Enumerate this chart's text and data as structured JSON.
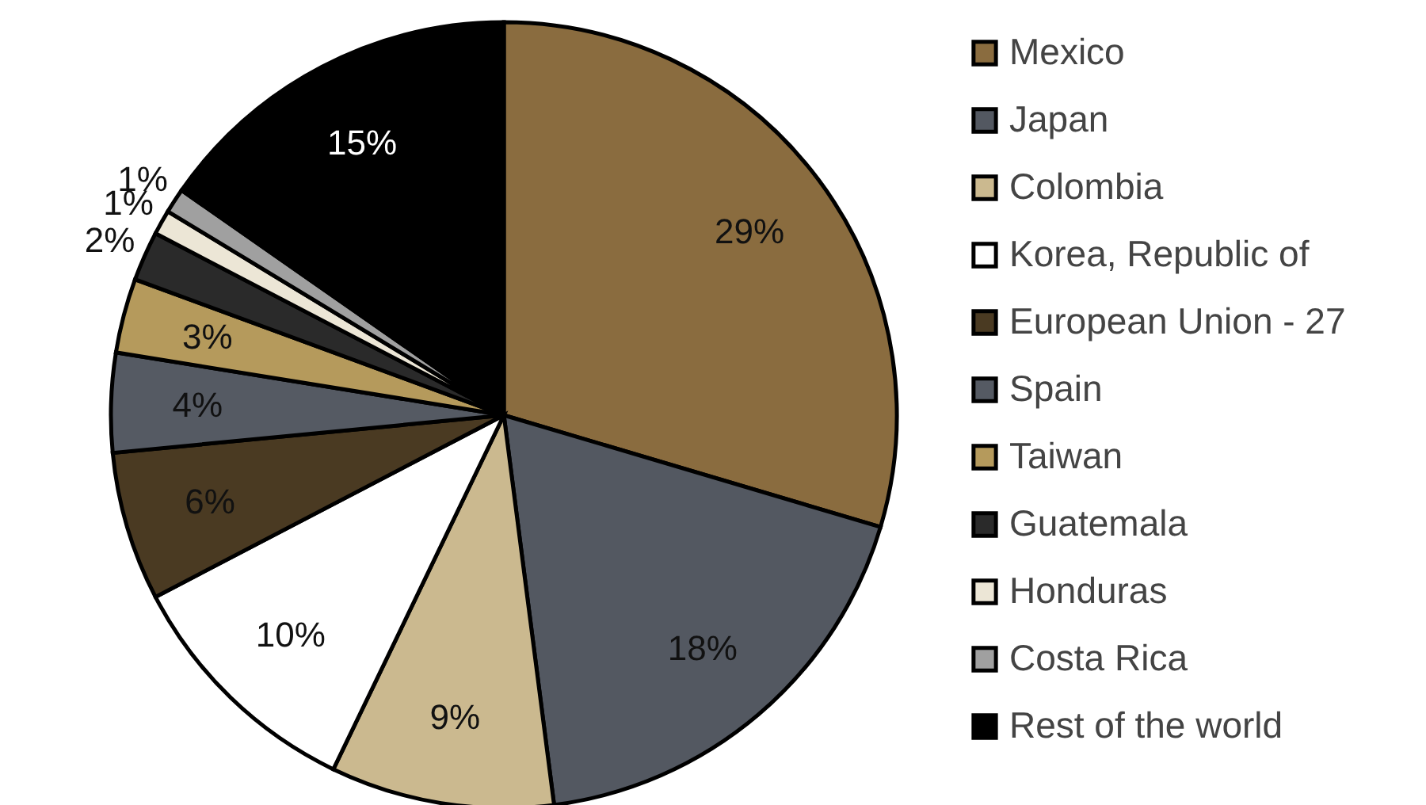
{
  "chart_data": {
    "type": "pie",
    "categories": [
      "Mexico",
      "Japan",
      "Colombia",
      "Korea, Republic of",
      "European Union - 27",
      "Spain",
      "Taiwan",
      "Guatemala",
      "Honduras",
      "Costa Rica",
      "Rest of the world"
    ],
    "values": [
      29,
      18,
      9,
      10,
      6,
      4,
      3,
      2,
      1,
      1,
      15
    ],
    "colors": [
      "#8a6c3f",
      "#535861",
      "#cbb98f",
      "#ffffff",
      "#4a3a22",
      "#555a63",
      "#b59a5c",
      "#2a2a2a",
      "#ece6d6",
      "#a0a0a0",
      "#000000"
    ],
    "value_labels": [
      "29%",
      "18%",
      "9%",
      "10%",
      "6%",
      "4%",
      "3%",
      "2%",
      "1%",
      "1%",
      "15%"
    ],
    "legend": "right"
  }
}
